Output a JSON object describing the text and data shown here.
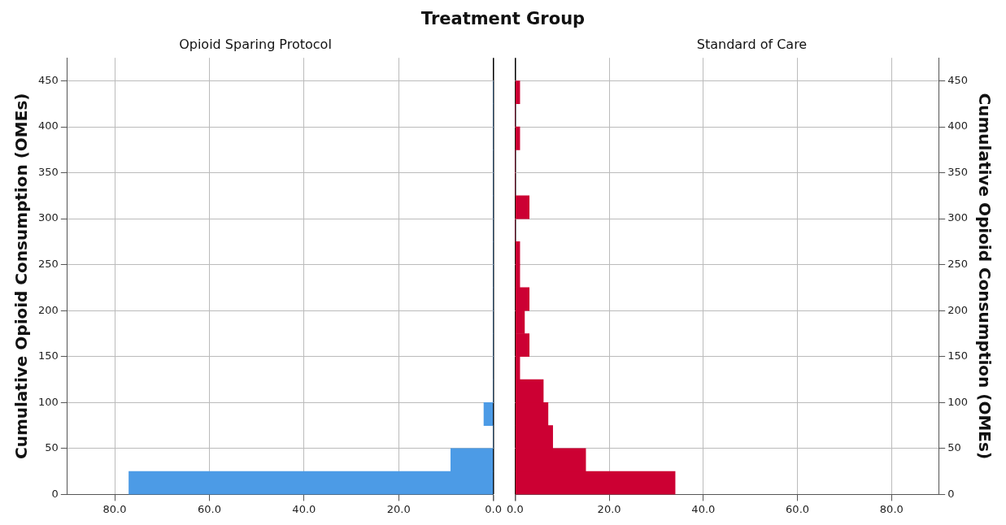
{
  "chart_data": [
    {
      "type": "histogram",
      "orientation": "horizontal",
      "title": "Treatment Group",
      "subtitle": "Opioid Sparing Protocol",
      "ylabel": "Cumulative Opioid Consumption (OMEs)",
      "bins": [
        0,
        25,
        50,
        75,
        100,
        125,
        150,
        175,
        200,
        225,
        250,
        275,
        300,
        325,
        350,
        375,
        400,
        425,
        450
      ],
      "color": "#4c9be6",
      "values": [
        77,
        9,
        0,
        2,
        0,
        0,
        0,
        0,
        0,
        0,
        0,
        0,
        0,
        0,
        0,
        0,
        0,
        0
      ],
      "xlim": [
        90,
        0
      ],
      "xticks": [
        {
          "value": 80,
          "label": "80.0"
        },
        {
          "value": 60,
          "label": "60.0"
        },
        {
          "value": 40,
          "label": "40.0"
        },
        {
          "value": 20,
          "label": "20.0"
        },
        {
          "value": 0,
          "label": "0.0"
        }
      ],
      "ylim": [
        0,
        475
      ],
      "yticks": [
        0,
        50,
        100,
        150,
        200,
        250,
        300,
        350,
        400,
        450
      ],
      "grid": true
    },
    {
      "type": "histogram",
      "orientation": "horizontal",
      "subtitle": "Standard of Care",
      "ylabel": "Cumulative Opioid Consumption (OMEs)",
      "bins": [
        0,
        25,
        50,
        75,
        100,
        125,
        150,
        175,
        200,
        225,
        250,
        275,
        300,
        325,
        350,
        375,
        400,
        425,
        450
      ],
      "color": "#cc0033",
      "values": [
        34,
        15,
        8,
        7,
        6,
        1,
        3,
        2,
        3,
        1,
        1,
        0,
        3,
        0,
        0,
        1,
        0,
        1
      ],
      "xlim": [
        0,
        90
      ],
      "xticks": [
        {
          "value": 0,
          "label": "0.0"
        },
        {
          "value": 20,
          "label": "20.0"
        },
        {
          "value": 40,
          "label": "40.0"
        },
        {
          "value": 60,
          "label": "60.0"
        },
        {
          "value": 80,
          "label": "80.0"
        }
      ],
      "ylim": [
        0,
        475
      ],
      "yticks": [
        0,
        50,
        100,
        150,
        200,
        250,
        300,
        350,
        400,
        450
      ],
      "grid": true
    }
  ]
}
